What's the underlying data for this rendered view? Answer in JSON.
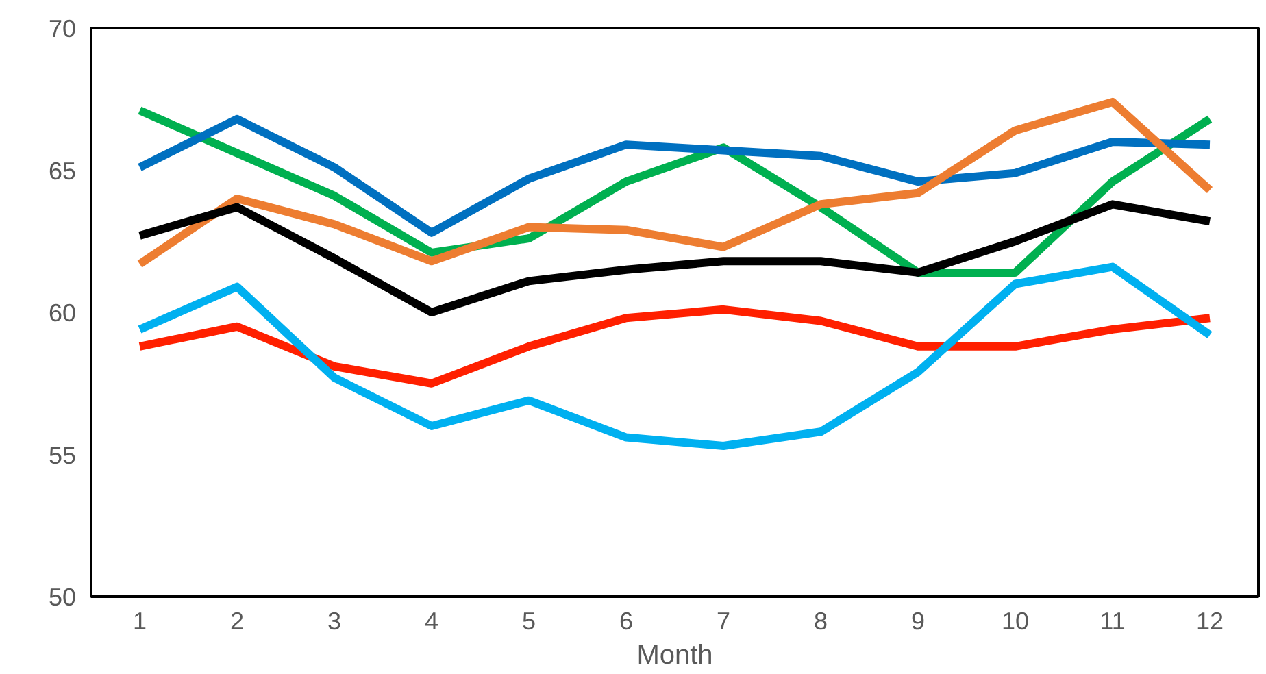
{
  "chart_data": {
    "type": "line",
    "xlabel": "Month",
    "x": [
      1,
      2,
      3,
      4,
      5,
      6,
      7,
      8,
      9,
      10,
      11,
      12
    ],
    "xlim": [
      0.5,
      12.5
    ],
    "xticks": [
      1,
      2,
      3,
      4,
      5,
      6,
      7,
      8,
      9,
      10,
      11,
      12
    ],
    "ylim": [
      50,
      70
    ],
    "yticks": [
      50,
      55,
      60,
      65,
      70
    ],
    "grid": false,
    "marker": "none",
    "line_style": "solid",
    "series": [
      {
        "color": "#00b050",
        "values": [
          67.1,
          65.6,
          64.1,
          62.1,
          62.6,
          64.6,
          65.8,
          63.7,
          61.4,
          61.4,
          64.6,
          66.8
        ]
      },
      {
        "color": "#0070c0",
        "values": [
          65.1,
          66.8,
          65.1,
          62.8,
          64.7,
          65.9,
          65.7,
          65.5,
          64.6,
          64.9,
          66.0,
          65.9
        ]
      },
      {
        "color": "#ed7d31",
        "values": [
          61.7,
          64.0,
          63.1,
          61.8,
          63.0,
          62.9,
          62.3,
          63.8,
          64.2,
          66.4,
          67.4,
          64.3
        ]
      },
      {
        "color": "#000000",
        "values": [
          62.7,
          63.7,
          61.9,
          60.0,
          61.1,
          61.5,
          61.8,
          61.8,
          61.4,
          62.5,
          63.8,
          63.2
        ]
      },
      {
        "color": "#ff2000",
        "values": [
          58.8,
          59.5,
          58.1,
          57.5,
          58.8,
          59.8,
          60.1,
          59.7,
          58.8,
          58.8,
          59.4,
          59.8
        ]
      },
      {
        "color": "#00b0f0",
        "values": [
          59.4,
          60.9,
          57.7,
          56.0,
          56.9,
          55.6,
          55.3,
          55.8,
          57.9,
          61.0,
          61.6,
          59.2
        ]
      }
    ]
  }
}
